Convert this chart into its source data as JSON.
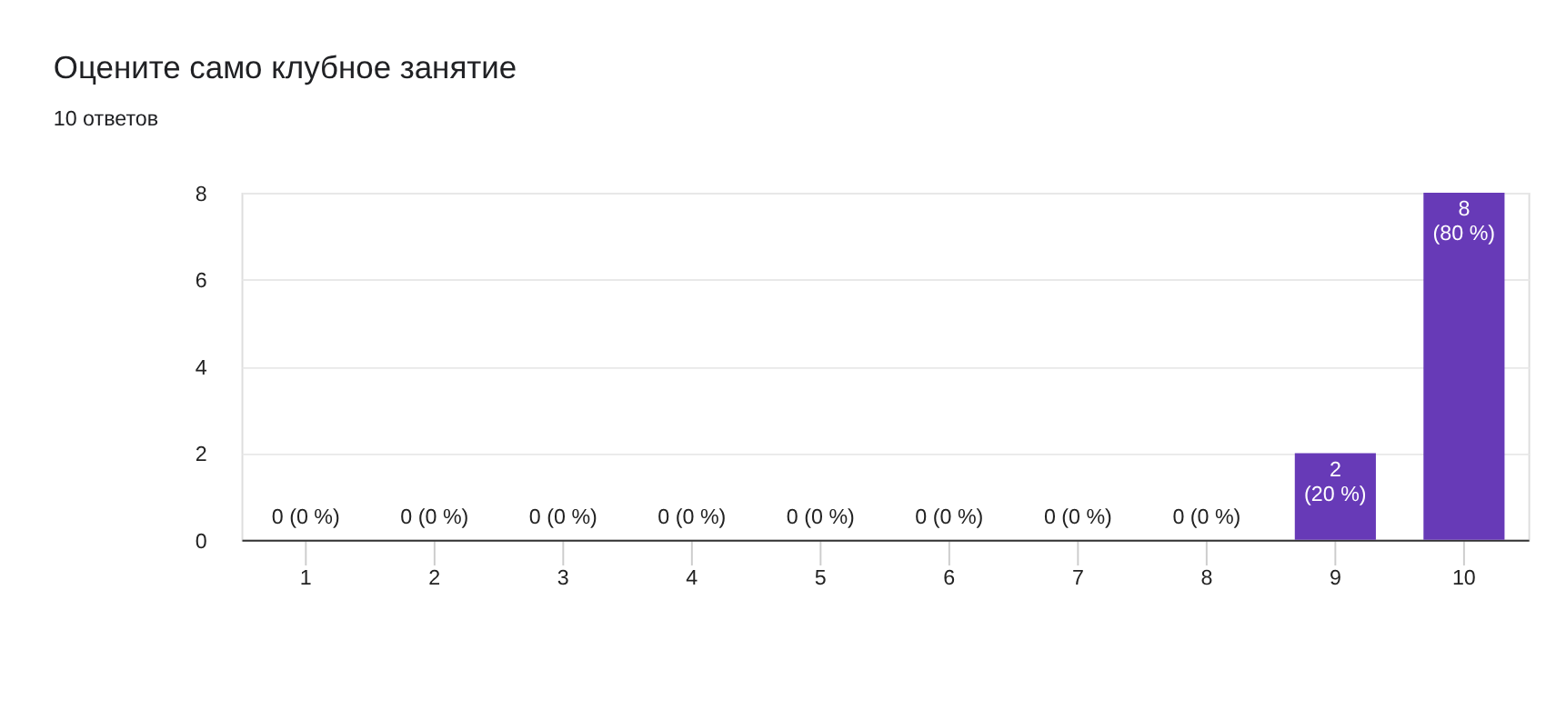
{
  "chart_data": {
    "type": "bar",
    "title": "Оцените само клубное занятие",
    "subtitle": "10 ответов",
    "categories": [
      "1",
      "2",
      "3",
      "4",
      "5",
      "6",
      "7",
      "8",
      "9",
      "10"
    ],
    "values": [
      0,
      0,
      0,
      0,
      0,
      0,
      0,
      0,
      2,
      8
    ],
    "value_labels": [
      "0 (0 %)",
      "0 (0 %)",
      "0 (0 %)",
      "0 (0 %)",
      "0 (0 %)",
      "0 (0 %)",
      "0 (0 %)",
      "0 (0 %)",
      "2\n(20 %)",
      "8\n(80 %)"
    ],
    "color": "#673ab7",
    "ylim": [
      0,
      8
    ],
    "yticks": [
      0,
      2,
      4,
      6,
      8
    ],
    "grid": "y"
  }
}
